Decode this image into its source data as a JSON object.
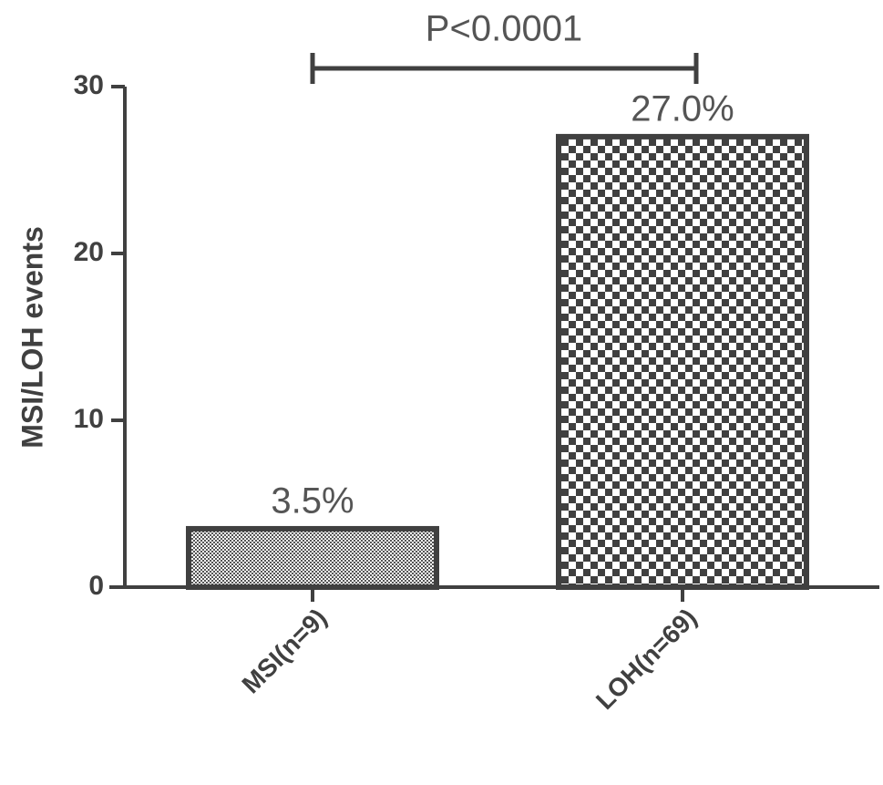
{
  "chart_data": {
    "type": "bar",
    "y_label": "MSI/LOH events",
    "categories": [
      "MSI(n=9)",
      "LOH(n=69)"
    ],
    "values": [
      3.5,
      27.0
    ],
    "value_labels": [
      "3.5%",
      "27.0%"
    ],
    "color": "#404040",
    "annotation": "P<0.0001",
    "ylim": [
      0,
      30
    ],
    "yticks": [
      0,
      10,
      20,
      30
    ],
    "grid": false
  }
}
